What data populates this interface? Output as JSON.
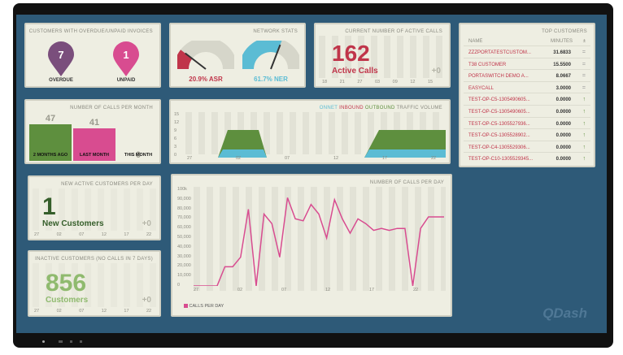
{
  "overdue": {
    "title": "CUSTOMERS WITH OVERDUE/UNPAID INVOICES",
    "overdue_count": "7",
    "overdue_label": "OVERDUE",
    "unpaid_count": "1",
    "unpaid_label": "UNPAID",
    "overdue_color": "#7a4e7c",
    "unpaid_color": "#d84c90"
  },
  "network": {
    "title": "NETWORK STATS",
    "asr_label": "20.9% ASR",
    "ner_label": "61.7% NER",
    "asr_value": 20.9,
    "ner_value": 61.7,
    "asr_color": "#c0354a",
    "ner_color": "#5bbcd4"
  },
  "active_calls": {
    "title": "CURRENT NUMBER OF ACTIVE CALLS",
    "value": "162",
    "label": "Active Calls",
    "delta": "+0",
    "ticks": [
      "18",
      "21",
      "27",
      "03",
      "09",
      "12",
      "15"
    ]
  },
  "top_customers": {
    "title": "TOP CUSTOMERS",
    "col_name": "NAME",
    "col_minutes": "MINUTES",
    "col_sort": "±",
    "rows": [
      {
        "name": "ZZZPORTATESTCUSTOM...",
        "minutes": "31.6833",
        "trend": "="
      },
      {
        "name": "T38 CUSTOMER",
        "minutes": "15.5500",
        "trend": "="
      },
      {
        "name": "PORTASWITCH DEMO A...",
        "minutes": "8.0667",
        "trend": "="
      },
      {
        "name": "EASYCALL",
        "minutes": "3.0000",
        "trend": "="
      },
      {
        "name": "TEST-OP-C5-1305490605...",
        "minutes": "0.0000",
        "trend": "↑"
      },
      {
        "name": "TEST-OP-C5-1305490605...",
        "minutes": "0.0000",
        "trend": "↑"
      },
      {
        "name": "TEST-OP-C5-1305527936...",
        "minutes": "0.0000",
        "trend": "↑"
      },
      {
        "name": "TEST-OP-C5-1305528902...",
        "minutes": "0.0000",
        "trend": "↑"
      },
      {
        "name": "TEST-OP-C4-1305529306...",
        "minutes": "0.0000",
        "trend": "↑"
      },
      {
        "name": "TEST-OP-C10-1305529345...",
        "minutes": "0.0000",
        "trend": "↑"
      }
    ]
  },
  "calls_per_month": {
    "title": "NUMBER OF CALLS PER MONTH",
    "chart_data": {
      "type": "bar",
      "categories": [
        "2 MONTHS AGO",
        "LAST MONTH",
        "THIS MONTH"
      ],
      "values": [
        47,
        41,
        0
      ],
      "colors": [
        "#5e8f3e",
        "#d84c90",
        "#eeeee2"
      ]
    }
  },
  "traffic": {
    "title_prefix": "ONNET",
    "inbound": "INBOUND",
    "outbound": "OUTBOUND",
    "title_suffix": "TRAFFIC VOLUME",
    "onnet_color": "#5bbcd4",
    "inbound_color": "#c0354a",
    "outbound_color": "#5e8f3e",
    "y_ticks": [
      "15",
      "12",
      "9",
      "6",
      "3",
      "0"
    ],
    "x_ticks": [
      "27",
      "02",
      "07",
      "12",
      "17",
      "22"
    ]
  },
  "new_active": {
    "title": "NEW ACTIVE CUSTOMERS PER DAY",
    "value": "1",
    "label": "New Customers",
    "delta": "+0",
    "ticks": [
      "27",
      "02",
      "07",
      "12",
      "17",
      "22"
    ]
  },
  "inactive": {
    "title": "INACTIVE CUSTOMERS (NO CALLS IN 7 DAYS)",
    "value": "856",
    "label": "Customers",
    "delta": "+0",
    "ticks": [
      "27",
      "02",
      "07",
      "12",
      "17",
      "22"
    ]
  },
  "calls_per_day": {
    "title": "NUMBER OF CALLS PER DAY",
    "legend": "CALLS PER DAY",
    "line_color": "#d84c90",
    "chart_data": {
      "type": "line",
      "y_ticks": [
        "100k",
        "90,000",
        "80,000",
        "70,000",
        "60,000",
        "50,000",
        "40,000",
        "30,000",
        "20,000",
        "10,000",
        "0"
      ],
      "x_ticks": [
        "27",
        "02",
        "07",
        "12",
        "17",
        "22"
      ],
      "ylim": [
        0,
        100000
      ],
      "series": [
        {
          "name": "CALLS PER DAY",
          "values": [
            0,
            0,
            0,
            0,
            20000,
            20000,
            30000,
            80000,
            0,
            75000,
            65000,
            30000,
            92000,
            70000,
            68000,
            85000,
            75000,
            50000,
            90000,
            70000,
            55000,
            70000,
            65000,
            58000,
            60000,
            58000,
            60000,
            60000,
            0,
            60000,
            72000,
            72000,
            72000
          ]
        }
      ]
    }
  },
  "branding": {
    "logo": "QDash"
  }
}
